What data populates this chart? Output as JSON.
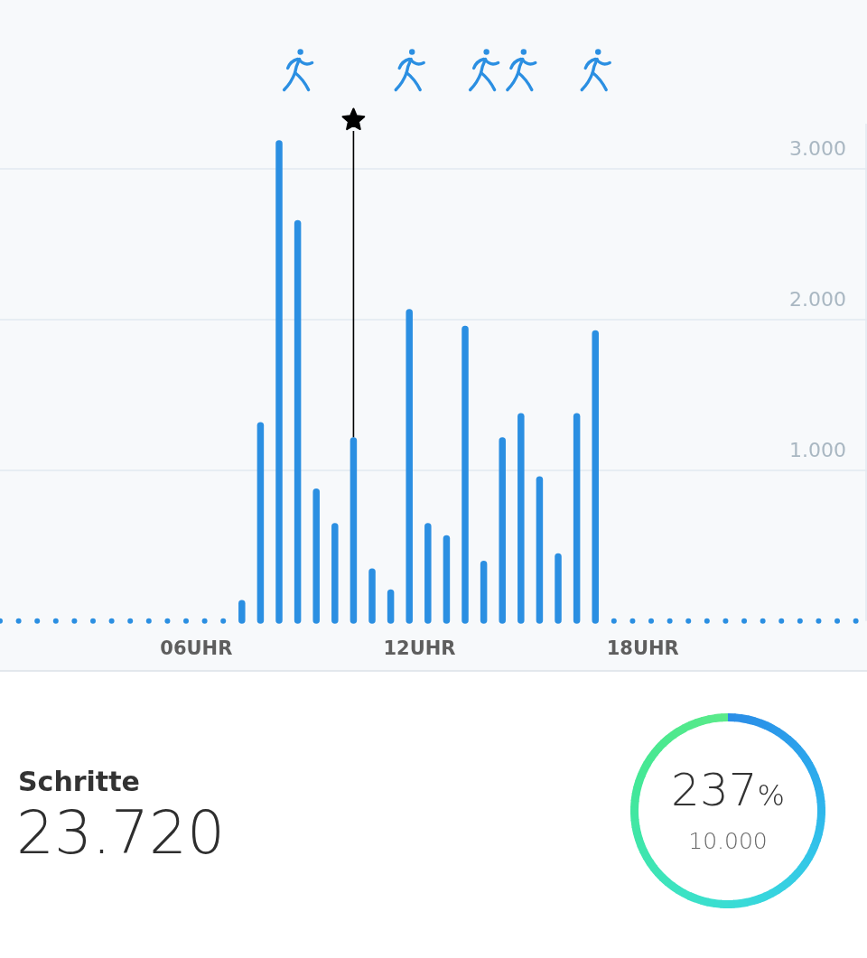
{
  "chart_data": [
    {
      "type": "bar",
      "series": [
        {
          "type": "bar",
          "color": "#2b8fe2",
          "x": [
            7.25,
            7.75,
            8.25,
            8.75,
            9.25,
            9.75,
            10.25,
            10.75,
            11.25,
            11.75,
            12.25,
            12.75,
            13.25,
            13.75,
            14.25,
            14.75,
            15.25,
            15.75,
            16.25,
            16.75
          ],
          "values": [
            140,
            1320,
            3190,
            2660,
            880,
            650,
            1220,
            350,
            210,
            2070,
            650,
            570,
            1960,
            400,
            1220,
            1380,
            960,
            450,
            1380,
            1930
          ]
        },
        {
          "type": "scatter",
          "color": "#2b8fe2",
          "marker": "circle",
          "x": [
            0.75,
            1.25,
            1.75,
            2.25,
            2.75,
            3.25,
            3.75,
            4.25,
            4.75,
            5.25,
            5.75,
            6.25,
            6.75,
            17.25,
            17.75,
            18.25,
            18.75,
            19.25,
            19.75,
            20.25,
            20.75,
            21.25,
            21.75,
            22.25,
            22.75,
            23.25,
            23.75
          ],
          "values": [
            0,
            0,
            0,
            0,
            0,
            0,
            0,
            0,
            0,
            0,
            0,
            0,
            0,
            0,
            0,
            0,
            0,
            0,
            0,
            0,
            0,
            0,
            0,
            0,
            0,
            0,
            0
          ]
        }
      ],
      "xlim": [
        0.75,
        24.05
      ],
      "ylim": [
        0,
        3300
      ],
      "xticks": [
        {
          "value": 6,
          "label": "06UHR"
        },
        {
          "value": 12,
          "label": "12UHR"
        },
        {
          "value": 18,
          "label": "18UHR"
        }
      ],
      "yticks": [
        {
          "value": 1000,
          "label": "1.000"
        },
        {
          "value": 2000,
          "label": "2.000"
        },
        {
          "value": 3000,
          "label": "3.000"
        }
      ],
      "grid": "y",
      "ref_lines": [
        {
          "axis": "x",
          "value": 10.25,
          "color": "#000000"
        }
      ]
    },
    {
      "type": "other",
      "title": "Schritte",
      "annotations": [
        "23.720",
        "237%",
        "10.000"
      ]
    }
  ]
}
